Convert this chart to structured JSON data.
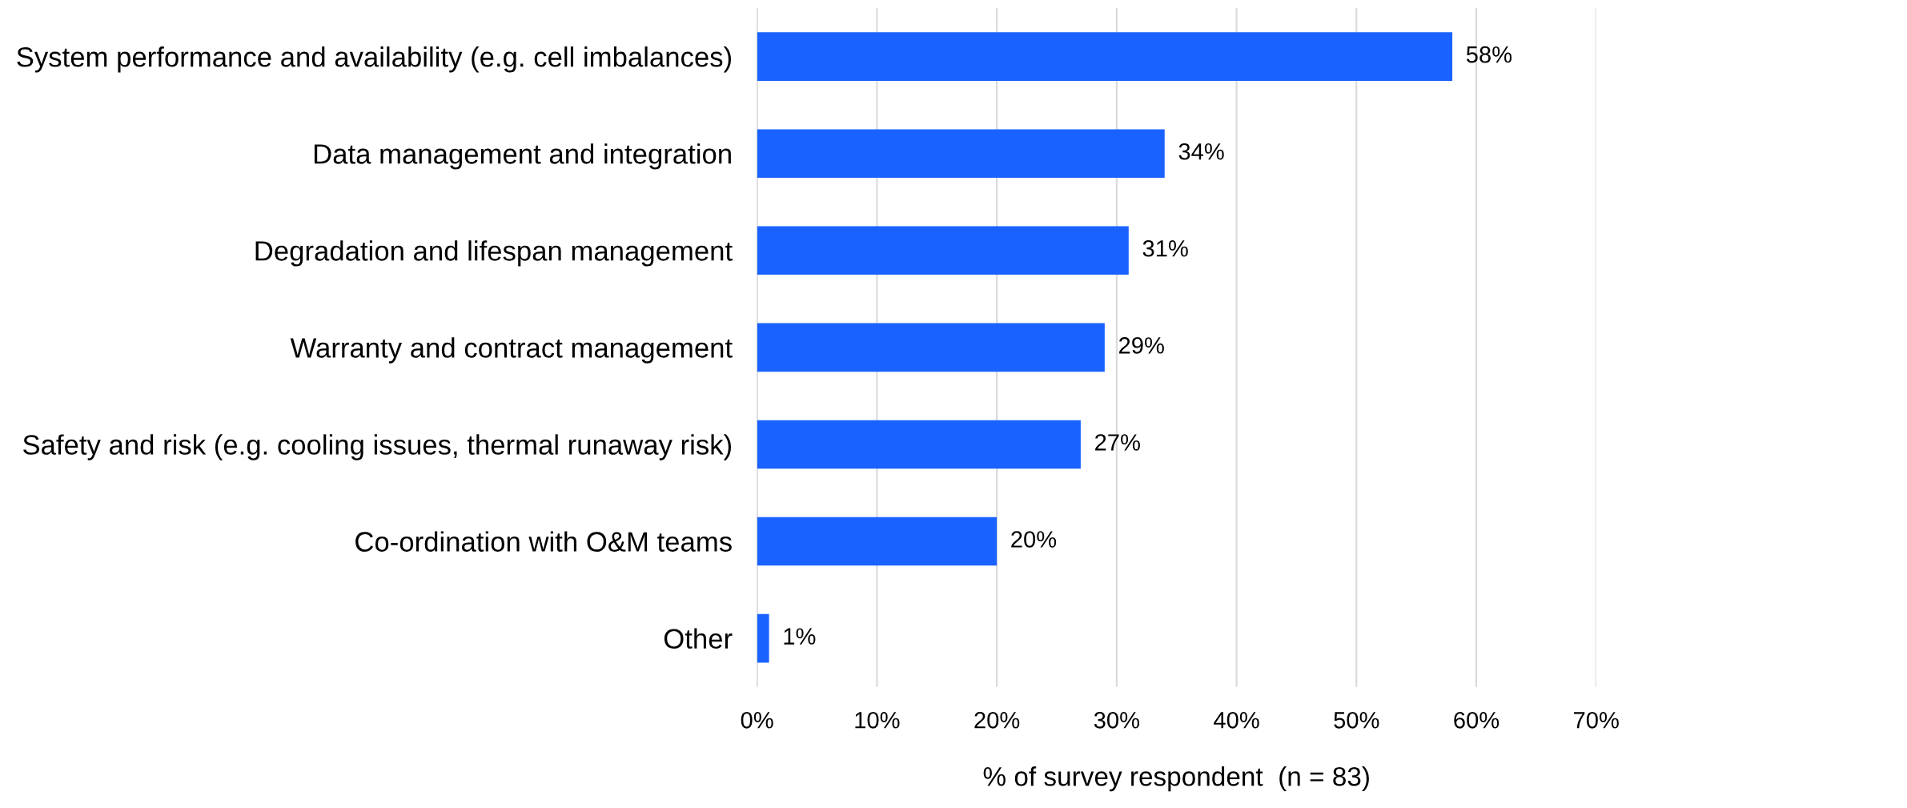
{
  "chart_data": {
    "type": "bar",
    "orientation": "horizontal",
    "xlabel": "% of survey respondent  (n = 83)",
    "categories": [
      "System performance and availability (e.g. cell imbalances)",
      "Data management and integration",
      "Degradation and lifespan management",
      "Warranty and contract management",
      "Safety and risk (e.g. cooling issues, thermal runaway risk)",
      "Co-ordination with O&M teams",
      "Other"
    ],
    "values": [
      58,
      34,
      31,
      29,
      27,
      20,
      1
    ],
    "value_labels": [
      "58%",
      "34%",
      "31%",
      "29%",
      "27%",
      "20%",
      "1%"
    ],
    "color": "#1a62ff",
    "xlim": [
      0,
      70
    ],
    "xticks": [
      {
        "value": 0,
        "label": "0%"
      },
      {
        "value": 10,
        "label": "10%"
      },
      {
        "value": 20,
        "label": "20%"
      },
      {
        "value": 30,
        "label": "30%"
      },
      {
        "value": 40,
        "label": "40%"
      },
      {
        "value": 50,
        "label": "50%"
      },
      {
        "value": 60,
        "label": "60%"
      },
      {
        "value": 70,
        "label": "70%"
      }
    ],
    "grid": "x",
    "legend": false
  }
}
